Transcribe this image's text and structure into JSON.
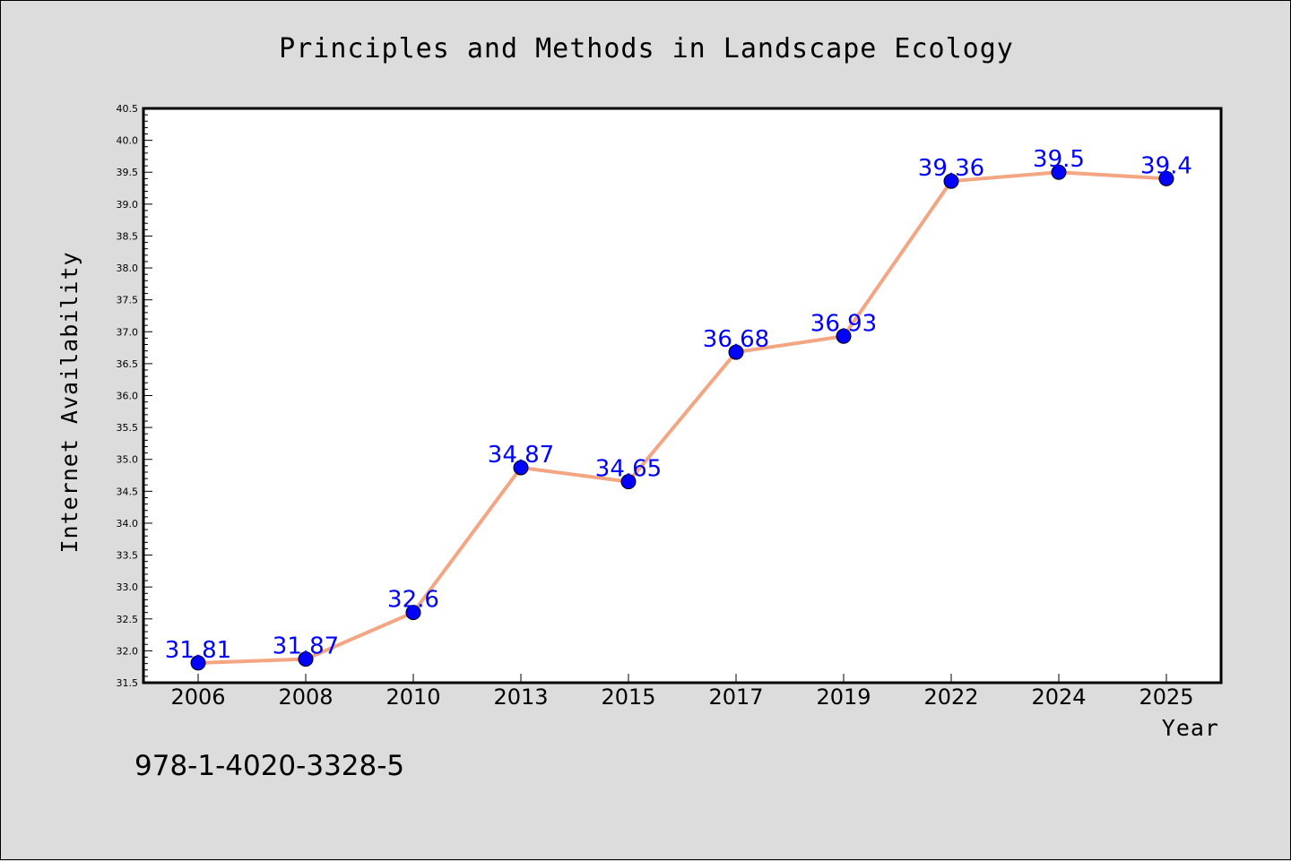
{
  "chart_data": {
    "type": "line",
    "title": "Principles and Methods in Landscape Ecology",
    "xlabel": "Year",
    "ylabel": "Internet Availability",
    "categories": [
      "2006",
      "2008",
      "2010",
      "2013",
      "2015",
      "2017",
      "2019",
      "2022",
      "2024",
      "2025"
    ],
    "series": [
      {
        "values": [
          31.81,
          31.87,
          32.6,
          34.87,
          34.65,
          36.68,
          36.93,
          39.36,
          39.5,
          39.4
        ],
        "data_labels": [
          "31.81",
          "31.87",
          "32.6",
          "34.87",
          "34.65",
          "36.68",
          "36.93",
          "39.36",
          "39.5",
          "39.4"
        ]
      }
    ],
    "ylim": [
      31.5,
      40.5
    ],
    "yticks": [
      "31.5",
      "32.0",
      "32.5",
      "33.0",
      "33.5",
      "34.0",
      "34.5",
      "35.0",
      "35.5",
      "36.0",
      "36.5",
      "37.0",
      "37.5",
      "38.0",
      "38.5",
      "39.0",
      "39.5",
      "40.0",
      "40.5"
    ],
    "grid": false,
    "colors": {
      "line": "#f4a582",
      "marker": "#0000ff",
      "label": "#0000ff",
      "plot_bg": "#ffffff",
      "page_bg": "#dcdcdc"
    }
  },
  "footer": {
    "text": "978-1-4020-3328-5"
  }
}
